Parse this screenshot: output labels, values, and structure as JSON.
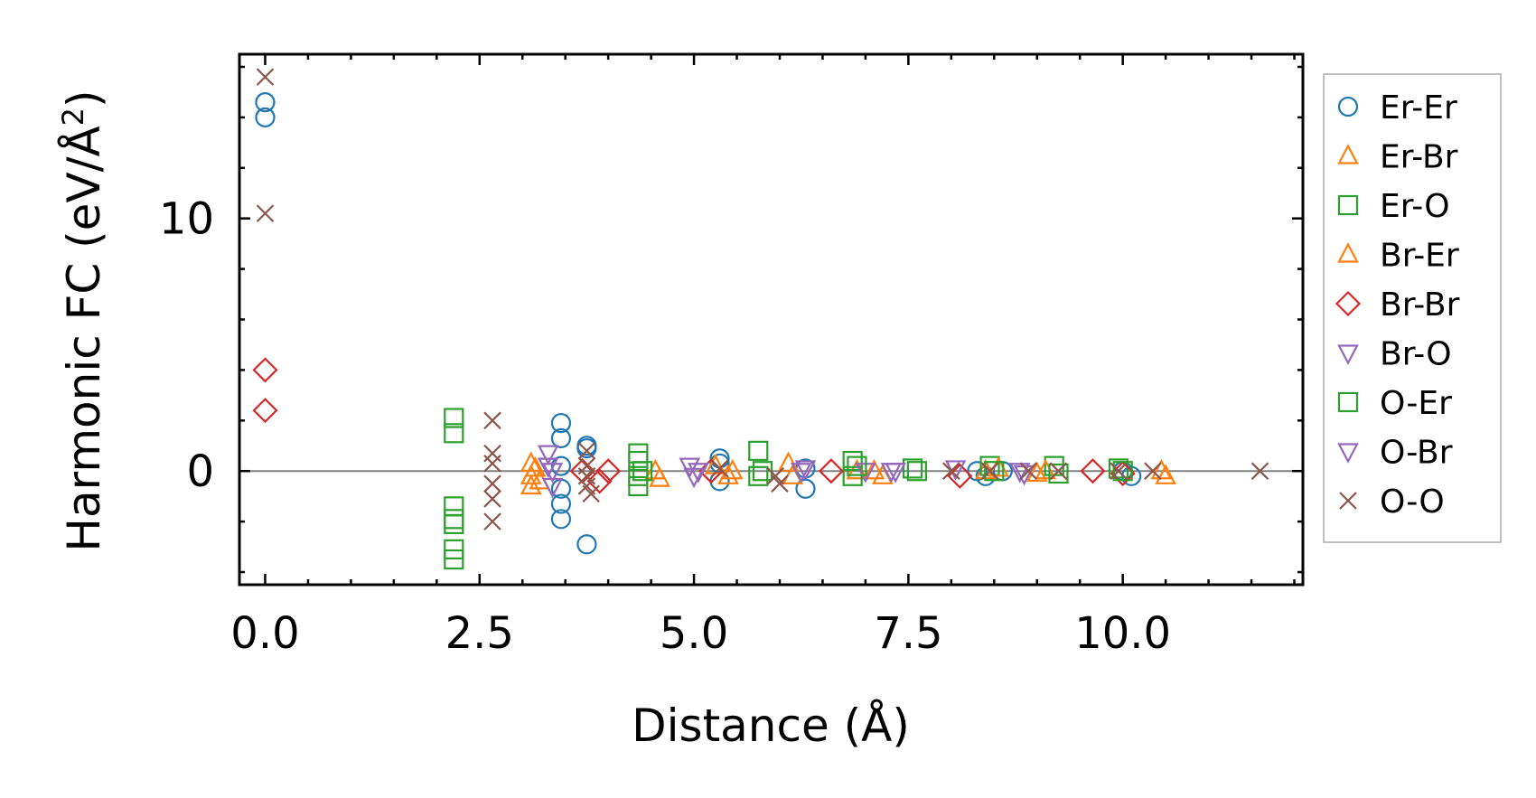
{
  "chart_data": {
    "type": "scatter",
    "title": "",
    "xlabel": "Distance (Å)",
    "ylabel_main": "Harmonic FC (eV/Å",
    "ylabel_sup": "2",
    "ylabel_close": ")",
    "xlim": [
      -0.3,
      12.1
    ],
    "ylim": [
      -4.5,
      16.5
    ],
    "xticks": [
      0.0,
      2.5,
      5.0,
      7.5,
      10.0
    ],
    "xtick_labels": [
      "0.0",
      "2.5",
      "5.0",
      "7.5",
      "10.0"
    ],
    "yticks": [
      0,
      10
    ],
    "ytick_labels": [
      "0",
      "10"
    ],
    "x_minor_step": 0.5,
    "y_minor_step": 2,
    "zero_line": true,
    "legend_location": "outside-right",
    "series": [
      {
        "name": "Er-Er",
        "marker": "circle",
        "color": "#1f77b4",
        "points": [
          [
            0,
            14.0
          ],
          [
            0,
            14.6
          ],
          [
            3.45,
            1.9
          ],
          [
            3.45,
            1.3
          ],
          [
            3.45,
            0.2
          ],
          [
            3.45,
            -0.7
          ],
          [
            3.45,
            -1.3
          ],
          [
            3.45,
            -1.9
          ],
          [
            3.75,
            1.0
          ],
          [
            3.75,
            0.9
          ],
          [
            3.75,
            -2.9
          ],
          [
            5.3,
            0.5
          ],
          [
            5.3,
            0.3
          ],
          [
            5.3,
            -0.4
          ],
          [
            6.3,
            0.1
          ],
          [
            6.3,
            -0.7
          ],
          [
            8.3,
            0.0
          ],
          [
            8.4,
            -0.2
          ],
          [
            8.6,
            0.0
          ],
          [
            10.0,
            0.0
          ],
          [
            10.1,
            -0.2
          ]
        ]
      },
      {
        "name": "Er-Br",
        "marker": "triangle-up",
        "color": "#ff7f0e",
        "points": [
          [
            3.1,
            0.3
          ],
          [
            3.1,
            -0.2
          ],
          [
            3.1,
            -0.6
          ],
          [
            4.55,
            0.0
          ],
          [
            5.25,
            0.2
          ],
          [
            5.4,
            -0.2
          ],
          [
            6.1,
            0.3
          ],
          [
            6.9,
            0.0
          ],
          [
            7.1,
            0.0
          ],
          [
            8.4,
            0.0
          ],
          [
            9.0,
            -0.1
          ],
          [
            10.45,
            0.0
          ]
        ]
      },
      {
        "name": "Er-O",
        "marker": "square",
        "color": "#2ca02c",
        "points": [
          [
            2.2,
            2.1
          ],
          [
            2.2,
            1.5
          ],
          [
            2.2,
            -1.4
          ],
          [
            2.2,
            -1.9
          ],
          [
            2.2,
            -3.1
          ],
          [
            2.2,
            -3.5
          ],
          [
            4.35,
            0.7
          ],
          [
            4.35,
            0.4
          ],
          [
            4.35,
            -0.2
          ],
          [
            4.35,
            -0.6
          ],
          [
            5.75,
            0.8
          ],
          [
            5.75,
            -0.2
          ],
          [
            6.85,
            0.4
          ],
          [
            6.85,
            -0.2
          ],
          [
            7.55,
            0.1
          ],
          [
            8.45,
            0.2
          ],
          [
            9.2,
            0.2
          ],
          [
            9.95,
            0.1
          ]
        ]
      },
      {
        "name": "Br-Er",
        "marker": "triangle-up",
        "color": "#ff7f0e",
        "points": [
          [
            3.15,
            0.1
          ],
          [
            3.2,
            -0.4
          ],
          [
            4.6,
            -0.3
          ],
          [
            5.45,
            0.0
          ],
          [
            6.15,
            -0.2
          ],
          [
            7.2,
            -0.2
          ],
          [
            8.55,
            0.1
          ],
          [
            9.1,
            0.0
          ],
          [
            10.5,
            -0.2
          ]
        ]
      },
      {
        "name": "Br-Br",
        "marker": "diamond",
        "color": "#d62728",
        "points": [
          [
            0,
            4.0
          ],
          [
            0,
            2.4
          ],
          [
            3.7,
            0.0
          ],
          [
            3.9,
            -0.4
          ],
          [
            4.0,
            0.0
          ],
          [
            5.2,
            0.0
          ],
          [
            6.6,
            0.0
          ],
          [
            8.1,
            -0.2
          ],
          [
            9.65,
            0.0
          ],
          [
            10.0,
            -0.1
          ]
        ]
      },
      {
        "name": "Br-O",
        "marker": "triangle-down",
        "color": "#9467bd",
        "points": [
          [
            3.3,
            0.7
          ],
          [
            3.3,
            0.2
          ],
          [
            3.35,
            -0.6
          ],
          [
            4.95,
            0.2
          ],
          [
            5.0,
            -0.2
          ],
          [
            6.25,
            0.0
          ],
          [
            7.0,
            0.0
          ],
          [
            7.3,
            0.0
          ],
          [
            8.05,
            0.1
          ],
          [
            8.8,
            0.0
          ]
        ]
      },
      {
        "name": "O-Er",
        "marker": "square",
        "color": "#2ca02c",
        "points": [
          [
            2.2,
            -2.1
          ],
          [
            4.4,
            0.0
          ],
          [
            5.8,
            0.0
          ],
          [
            6.9,
            0.2
          ],
          [
            7.6,
            0.0
          ],
          [
            8.5,
            0.0
          ],
          [
            9.25,
            -0.1
          ],
          [
            10.0,
            0.0
          ]
        ]
      },
      {
        "name": "O-Br",
        "marker": "triangle-down",
        "color": "#9467bd",
        "points": [
          [
            3.35,
            0.0
          ],
          [
            5.05,
            0.0
          ],
          [
            6.3,
            0.1
          ],
          [
            7.35,
            0.0
          ],
          [
            8.85,
            -0.1
          ]
        ]
      },
      {
        "name": "O-O",
        "marker": "x",
        "color": "#8c564b",
        "points": [
          [
            0,
            15.6
          ],
          [
            0,
            10.2
          ],
          [
            2.65,
            2.0
          ],
          [
            2.65,
            0.7
          ],
          [
            2.65,
            0.3
          ],
          [
            2.65,
            -0.5
          ],
          [
            2.65,
            -1.1
          ],
          [
            2.65,
            -2.0
          ],
          [
            3.75,
            0.8
          ],
          [
            3.75,
            0.2
          ],
          [
            3.75,
            -0.2
          ],
          [
            3.75,
            -0.6
          ],
          [
            3.8,
            -0.9
          ],
          [
            5.3,
            0.1
          ],
          [
            5.95,
            -0.2
          ],
          [
            6.0,
            -0.5
          ],
          [
            8.0,
            0.0
          ],
          [
            8.45,
            0.0
          ],
          [
            8.9,
            0.0
          ],
          [
            9.25,
            0.0
          ],
          [
            9.95,
            0.0
          ],
          [
            10.35,
            0.0
          ],
          [
            11.6,
            0.0
          ]
        ]
      }
    ]
  }
}
